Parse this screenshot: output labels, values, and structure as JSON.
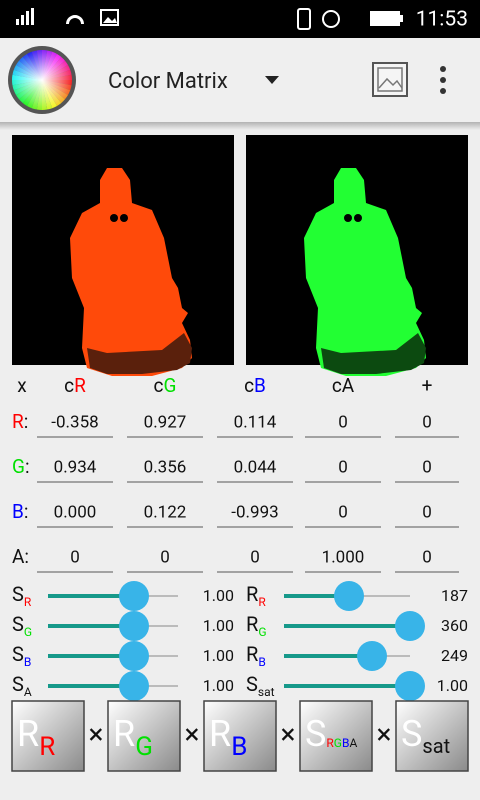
{
  "status_bar": {
    "time": "11:53"
  },
  "app_bar": {
    "title": "Color Matrix"
  },
  "matrix": {
    "corner": "x",
    "separator": ":",
    "columns": [
      {
        "prefix": "c",
        "channel": "R"
      },
      {
        "prefix": "c",
        "channel": "G"
      },
      {
        "prefix": "c",
        "channel": "B"
      },
      {
        "prefix": "c",
        "channel": "A"
      }
    ],
    "extra_column": "+",
    "rows": [
      {
        "label": "R",
        "cells": [
          "-0.358",
          "0.927",
          "0.114",
          "0",
          "0"
        ]
      },
      {
        "label": "G",
        "cells": [
          "0.934",
          "0.356",
          "0.044",
          "0",
          "0"
        ]
      },
      {
        "label": "B",
        "cells": [
          "0.000",
          "0.122",
          "-0.993",
          "0",
          "0"
        ]
      },
      {
        "label": "A",
        "cells": [
          "0",
          "0",
          "0",
          "1.000",
          "0"
        ]
      }
    ]
  },
  "sliders_left": [
    {
      "symbol": "S",
      "sub": "R",
      "value": "1.00"
    },
    {
      "symbol": "S",
      "sub": "G",
      "value": "1.00"
    },
    {
      "symbol": "S",
      "sub": "B",
      "value": "1.00"
    },
    {
      "symbol": "S",
      "sub": "A",
      "value": "1.00"
    }
  ],
  "sliders_right": [
    {
      "symbol": "R",
      "sub": "R",
      "value": "187"
    },
    {
      "symbol": "R",
      "sub": "G",
      "value": "360"
    },
    {
      "symbol": "R",
      "sub": "B",
      "value": "249"
    },
    {
      "symbol": "S",
      "sub": "sat",
      "value": "1.00"
    }
  ],
  "buttons": [
    {
      "symbol": "R",
      "sub": [
        "R"
      ]
    },
    {
      "symbol": "R",
      "sub": [
        "G"
      ]
    },
    {
      "symbol": "R",
      "sub": [
        "B"
      ]
    },
    {
      "symbol": "S",
      "sub": [
        "R",
        "G",
        "B",
        "A"
      ]
    },
    {
      "symbol": "S",
      "sub": [
        "sat"
      ]
    }
  ],
  "operator": "×"
}
